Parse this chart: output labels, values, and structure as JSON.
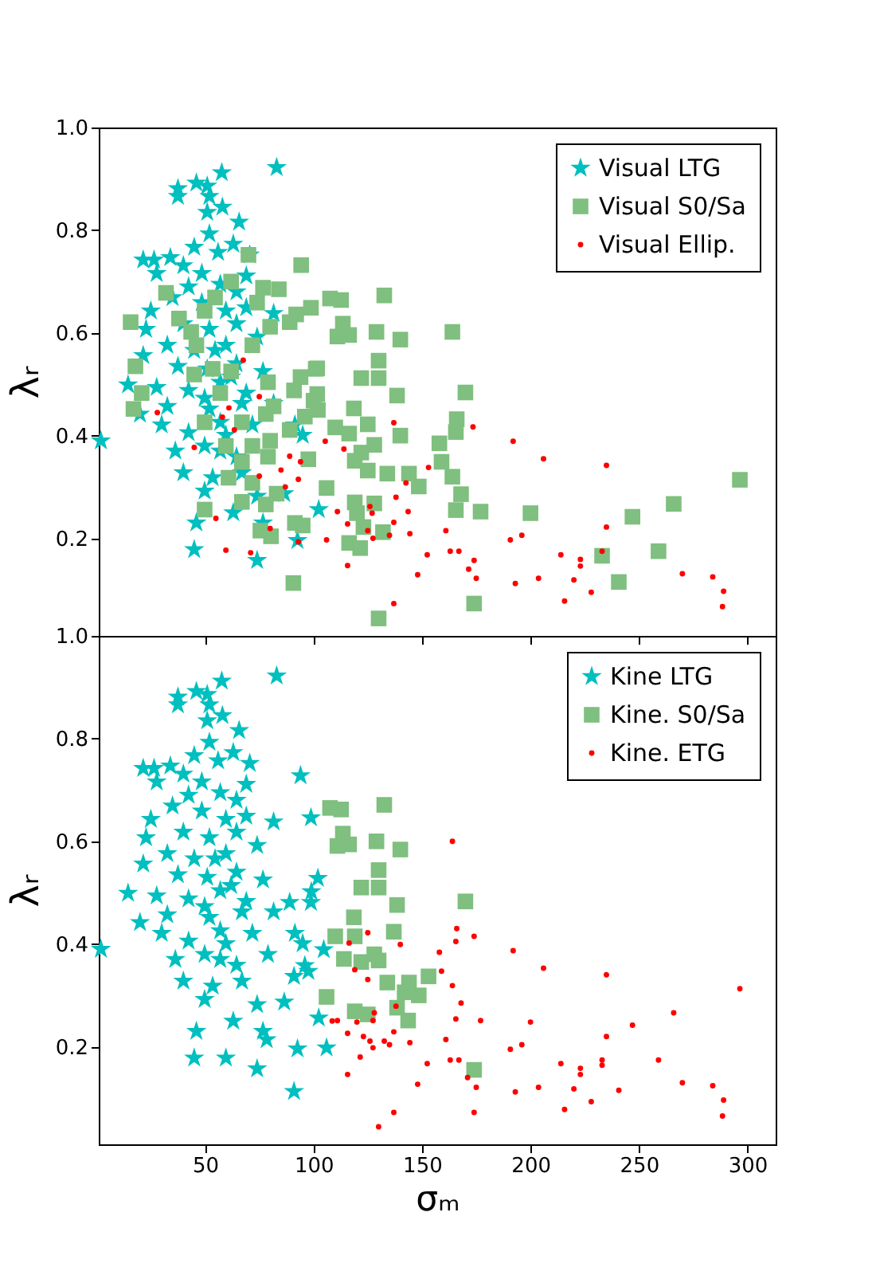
{
  "chart_data": [
    {
      "type": "scatter",
      "ylabel": "λᵣ",
      "xlim": [
        1,
        313
      ],
      "xticks": [
        50,
        100,
        150,
        200,
        250,
        300
      ],
      "ylim": [
        0.01,
        1.0
      ],
      "yticks": [
        0.2,
        0.4,
        0.6,
        0.8,
        {
          "value": 1,
          "label": "1.0"
        }
      ],
      "tick_labels": "y",
      "legend": "top right",
      "grid": false,
      "series": [
        {
          "name": "Visual LTG",
          "color": "#00bfbf",
          "marker": "star",
          "x": [
            83,
            57.7,
            37.5,
            51,
            46,
            37.5,
            52,
            58,
            51,
            65.7,
            52,
            45,
            63,
            56,
            21.5,
            26.5,
            34,
            70.6,
            40,
            27.7,
            48.5,
            69,
            42.4,
            57,
            64.5,
            35,
            48.5,
            25,
            59.6,
            69,
            81.6,
            22.8,
            40,
            52,
            64.5,
            74,
            32.6,
            45,
            59.6,
            21.5,
            37.5,
            51,
            64.5,
            76.7,
            14.5,
            27.7,
            42.4,
            57,
            69,
            20,
            32.6,
            49.8,
            67,
            81.6,
            30,
            42.4,
            57,
            71.8,
            91.4,
            2,
            36.3,
            49.8,
            64.5,
            95,
            40,
            53.5,
            67,
            49.8,
            74,
            86.5,
            63,
            102.4,
            46,
            76.7,
            45,
            74,
            92.6,
            57,
            54.6,
            62,
            52,
            59.6
          ],
          "values": [
            0.922,
            0.912,
            0.881,
            0.886,
            0.892,
            0.866,
            0.866,
            0.845,
            0.835,
            0.816,
            0.793,
            0.767,
            0.773,
            0.757,
            0.742,
            0.742,
            0.747,
            0.752,
            0.731,
            0.716,
            0.716,
            0.711,
            0.69,
            0.695,
            0.68,
            0.669,
            0.659,
            0.643,
            0.643,
            0.649,
            0.638,
            0.607,
            0.618,
            0.607,
            0.618,
            0.592,
            0.576,
            0.566,
            0.576,
            0.556,
            0.535,
            0.53,
            0.54,
            0.525,
            0.499,
            0.494,
            0.488,
            0.504,
            0.483,
            0.442,
            0.457,
            0.473,
            0.463,
            0.463,
            0.421,
            0.406,
            0.426,
            0.421,
            0.421,
            0.39,
            0.37,
            0.38,
            0.359,
            0.401,
            0.328,
            0.318,
            0.328,
            0.292,
            0.282,
            0.287,
            0.25,
            0.256,
            0.23,
            0.23,
            0.178,
            0.157,
            0.196,
            0.37,
            0.566,
            0.514,
            0.452,
            0.401
          ]
        },
        {
          "name": "Visual S0/Sa",
          "color": "#7fbf7f",
          "marker": "square",
          "x": [
            132.6,
            107.6,
            112.7,
            98.8,
            113.5,
            111,
            116.4,
            129,
            140,
            164,
            130,
            101.7,
            122,
            130,
            101.7,
            138.5,
            170,
            102,
            118.6,
            166,
            165.6,
            140,
            158,
            110,
            116.4,
            125,
            128,
            122,
            119,
            125,
            134,
            144,
            159,
            164,
            148.5,
            168,
            106,
            119,
            120,
            128,
            165.6,
            177,
            200,
            247,
            266,
            296.5,
            123,
            132,
            116.4,
            121.5,
            233,
            259,
            240.7,
            174,
            130,
            70,
            94.3,
            76.7,
            84,
            15.7,
            32,
            92,
            89,
            62,
            54.6,
            49.8,
            38,
            43.6,
            74,
            80,
            71.8,
            46,
            17.9,
            20.8,
            17,
            53.5,
            62,
            79,
            94,
            101,
            100,
            81.6,
            91,
            49.8,
            67,
            78,
            96,
            59.6,
            71.8,
            80,
            89,
            67,
            79,
            97.6,
            60.8,
            71.8,
            83,
            67,
            78,
            49.8,
            91.4,
            95,
            75.5,
            80.4,
            90.7,
            45,
            57
          ],
          "values": [
            0.673,
            0.667,
            0.664,
            0.649,
            0.618,
            0.593,
            0.596,
            0.602,
            0.587,
            0.602,
            0.546,
            0.531,
            0.512,
            0.512,
            0.481,
            0.478,
            0.484,
            0.45,
            0.453,
            0.432,
            0.407,
            0.4,
            0.385,
            0.416,
            0.404,
            0.422,
            0.382,
            0.367,
            0.351,
            0.332,
            0.326,
            0.326,
            0.349,
            0.32,
            0.301,
            0.286,
            0.298,
            0.27,
            0.249,
            0.268,
            0.255,
            0.252,
            0.249,
            0.242,
            0.267,
            0.314,
            0.222,
            0.212,
            0.191,
            0.181,
            0.166,
            0.175,
            0.115,
            0.073,
            0.044,
            0.752,
            0.732,
            0.688,
            0.685,
            0.621,
            0.678,
            0.636,
            0.621,
            0.7,
            0.669,
            0.643,
            0.628,
            0.602,
            0.659,
            0.612,
            0.576,
            0.576,
            0.535,
            0.483,
            0.452,
            0.53,
            0.525,
            0.504,
            0.514,
            0.53,
            0.468,
            0.457,
            0.488,
            0.426,
            0.426,
            0.442,
            0.437,
            0.38,
            0.38,
            0.39,
            0.411,
            0.349,
            0.359,
            0.354,
            0.318,
            0.308,
            0.287,
            0.271,
            0.266,
            0.256,
            0.23,
            0.225,
            0.215,
            0.204,
            0.113,
            0.519,
            0.483
          ]
        },
        {
          "name": "Visual Ellip.",
          "color": "#ff0000",
          "marker": "circle",
          "x": [
            105.4,
            114,
            137,
            173.5,
            192,
            206,
            235,
            153,
            142.6,
            138,
            126,
            127,
            111,
            143.6,
            115.7,
            137,
            125,
            127.4,
            135,
            144.4,
            161,
            106,
            235,
            190.7,
            196,
            152.4,
            163,
            167,
            174,
            171.5,
            175,
            148,
            115.7,
            193,
            203.7,
            214,
            223,
            223,
            220,
            233,
            215.7,
            228,
            137,
            270,
            284,
            289,
            288.5,
            67.6,
            75,
            61,
            58,
            63.5,
            28,
            45,
            89,
            94,
            85,
            75,
            93,
            87,
            55,
            80,
            59.6,
            71,
            93
          ],
          "values": [
            0.389,
            0.374,
            0.425,
            0.417,
            0.389,
            0.355,
            0.342,
            0.338,
            0.308,
            0.28,
            0.262,
            0.249,
            0.252,
            0.252,
            0.228,
            0.231,
            0.215,
            0.2,
            0.206,
            0.209,
            0.215,
            0.197,
            0.222,
            0.197,
            0.206,
            0.168,
            0.175,
            0.175,
            0.157,
            0.14,
            0.122,
            0.129,
            0.147,
            0.112,
            0.122,
            0.168,
            0.159,
            0.146,
            0.119,
            0.175,
            0.078,
            0.095,
            0.073,
            0.131,
            0.125,
            0.097,
            0.067,
            0.547,
            0.476,
            0.454,
            0.436,
            0.411,
            0.445,
            0.377,
            0.36,
            0.349,
            0.333,
            0.321,
            0.315,
            0.3,
            0.239,
            0.219,
            0.177,
            0.172,
            0.193
          ]
        }
      ]
    },
    {
      "type": "scatter",
      "xlabel": "σₘ",
      "ylabel": "λᵣ",
      "xlim": [
        1,
        313
      ],
      "xticks": [
        50,
        100,
        150,
        200,
        250,
        300
      ],
      "ylim": [
        0.01,
        1.0
      ],
      "yticks": [
        0.2,
        0.4,
        0.6,
        0.8,
        {
          "value": 1,
          "label": "1.0"
        }
      ],
      "legend": "top right",
      "grid": false,
      "series": [
        {
          "name": "Kine LTG",
          "color": "#00bfbf",
          "marker": "star",
          "x": [
            83,
            57.7,
            37.5,
            51,
            46,
            37.5,
            52,
            58,
            51,
            65.7,
            52,
            45,
            63,
            56,
            21.5,
            26.5,
            34,
            70.6,
            40,
            27.7,
            48.5,
            69,
            42.4,
            57,
            64.5,
            35,
            48.5,
            25,
            59.6,
            69,
            81.6,
            22.8,
            40,
            52,
            64.5,
            74,
            32.6,
            45,
            59.6,
            21.5,
            37.5,
            51,
            64.5,
            76.7,
            14.5,
            27.7,
            42.4,
            57,
            69,
            20,
            32.6,
            49.8,
            67,
            81.6,
            30,
            42.4,
            57,
            71.8,
            91.4,
            2,
            36.3,
            49.8,
            64.5,
            79,
            95,
            40,
            53.5,
            67,
            49.8,
            74,
            86.5,
            63,
            102.4,
            46,
            76.7,
            45,
            74,
            92.6,
            57,
            54.6,
            62,
            52,
            59.6,
            94,
            98.8,
            102,
            104.7,
            106,
            91,
            59.6,
            78.4,
            96,
            89,
            99,
            91,
            98.8,
            97.6
          ],
          "values": [
            0.922,
            0.912,
            0.881,
            0.886,
            0.892,
            0.866,
            0.866,
            0.845,
            0.835,
            0.816,
            0.793,
            0.767,
            0.773,
            0.757,
            0.742,
            0.742,
            0.747,
            0.752,
            0.731,
            0.716,
            0.716,
            0.711,
            0.69,
            0.695,
            0.68,
            0.669,
            0.659,
            0.643,
            0.643,
            0.649,
            0.638,
            0.607,
            0.618,
            0.607,
            0.618,
            0.592,
            0.576,
            0.566,
            0.576,
            0.556,
            0.535,
            0.53,
            0.54,
            0.525,
            0.499,
            0.494,
            0.488,
            0.504,
            0.483,
            0.442,
            0.457,
            0.473,
            0.463,
            0.463,
            0.421,
            0.406,
            0.426,
            0.421,
            0.421,
            0.39,
            0.37,
            0.38,
            0.359,
            0.38,
            0.401,
            0.328,
            0.318,
            0.328,
            0.292,
            0.282,
            0.287,
            0.25,
            0.256,
            0.23,
            0.23,
            0.178,
            0.157,
            0.196,
            0.37,
            0.566,
            0.514,
            0.452,
            0.401,
            0.728,
            0.646,
            0.528,
            0.389,
            0.198,
            0.113,
            0.178,
            0.214,
            0.358,
            0.481,
            0.502,
            0.337,
            0.481,
            0.347
          ]
        },
        {
          "name": "Kine. S0/Sa",
          "color": "#7fbf7f",
          "marker": "square",
          "x": [
            107.6,
            112.7,
            132.6,
            113.5,
            111,
            116.4,
            129,
            140,
            130,
            122,
            130,
            138.5,
            170,
            118.6,
            110,
            119,
            137,
            114,
            122,
            128,
            130,
            153,
            134,
            144,
            142,
            148.5,
            106,
            119,
            138.5,
            143.6,
            174,
            125
          ],
          "values": [
            0.665,
            0.662,
            0.671,
            0.615,
            0.591,
            0.594,
            0.6,
            0.584,
            0.544,
            0.51,
            0.51,
            0.476,
            0.483,
            0.452,
            0.415,
            0.415,
            0.424,
            0.371,
            0.365,
            0.38,
            0.368,
            0.337,
            0.325,
            0.325,
            0.306,
            0.3,
            0.297,
            0.269,
            0.276,
            0.251,
            0.155,
            0.263
          ]
        },
        {
          "name": "Kine. ETG",
          "color": "#ff0000",
          "marker": "circle",
          "x": [
            164,
            166,
            165.6,
            174,
            125,
            116.4,
            140,
            158,
            192,
            206,
            235,
            119,
            159,
            125,
            164,
            296.5,
            168,
            138,
            266,
            247,
            200,
            177,
            165.6,
            111,
            120,
            128,
            127.4,
            115.7,
            137,
            123,
            235,
            132.6,
            135,
            144.4,
            126,
            161,
            127.4,
            190.7,
            196,
            121.5,
            152.4,
            163,
            167,
            214,
            223,
            223,
            233,
            233,
            259,
            115.7,
            171,
            148,
            175,
            193,
            203.7,
            220,
            240.7,
            270,
            284,
            289,
            288.5,
            215.7,
            228,
            137,
            130,
            174,
            108.6
          ],
          "values": [
            0.6,
            0.43,
            0.405,
            0.415,
            0.422,
            0.402,
            0.399,
            0.384,
            0.387,
            0.353,
            0.34,
            0.35,
            0.347,
            0.331,
            0.319,
            0.313,
            0.285,
            0.279,
            0.266,
            0.242,
            0.248,
            0.251,
            0.254,
            0.251,
            0.248,
            0.266,
            0.251,
            0.226,
            0.229,
            0.22,
            0.22,
            0.211,
            0.204,
            0.208,
            0.211,
            0.214,
            0.198,
            0.195,
            0.204,
            0.18,
            0.167,
            0.174,
            0.174,
            0.167,
            0.158,
            0.146,
            0.174,
            0.164,
            0.174,
            0.146,
            0.14,
            0.127,
            0.121,
            0.112,
            0.121,
            0.118,
            0.115,
            0.13,
            0.124,
            0.096,
            0.065,
            0.078,
            0.093,
            0.072,
            0.044,
            0.072,
            0.25
          ]
        }
      ]
    }
  ]
}
